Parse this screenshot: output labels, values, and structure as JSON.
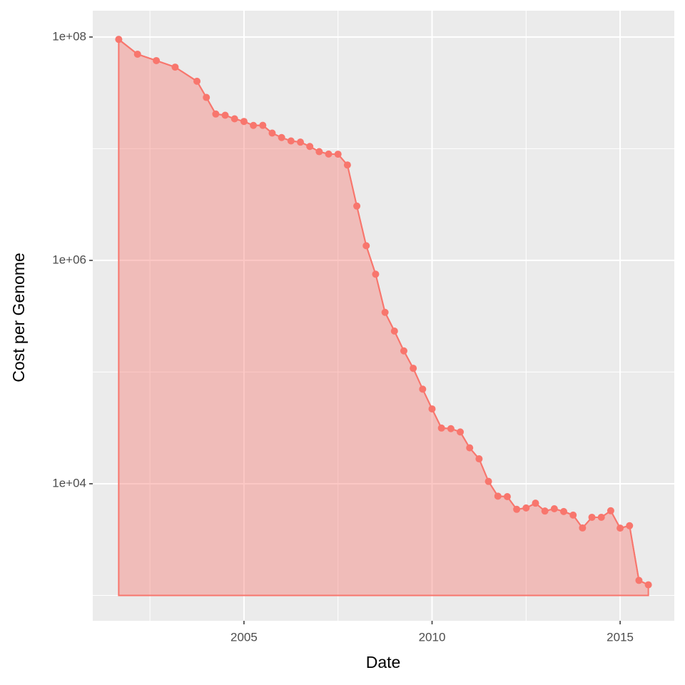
{
  "chart_data": {
    "type": "area",
    "x_label": "Date",
    "y_label": "Cost per Genome",
    "x": [
      2001.67,
      2002.17,
      2002.67,
      2003.17,
      2003.75,
      2004.0,
      2004.25,
      2004.5,
      2004.75,
      2005.0,
      2005.25,
      2005.5,
      2005.75,
      2006.0,
      2006.25,
      2006.5,
      2006.75,
      2007.0,
      2007.25,
      2007.5,
      2007.75,
      2008.0,
      2008.25,
      2008.5,
      2008.75,
      2009.0,
      2009.25,
      2009.5,
      2009.75,
      2010.0,
      2010.25,
      2010.5,
      2010.75,
      2011.0,
      2011.25,
      2011.5,
      2011.75,
      2012.0,
      2012.25,
      2012.5,
      2012.75,
      2013.0,
      2013.25,
      2013.5,
      2013.75,
      2014.0,
      2014.25,
      2014.5,
      2014.75,
      2015.0,
      2015.25,
      2015.5,
      2015.75
    ],
    "values": [
      95263072,
      70175437,
      61448422,
      53751684,
      40153999,
      28780376,
      20442576,
      19934346,
      18519312,
      17534970,
      16159699,
      16180224,
      13801124,
      12585659,
      11732535,
      11455315,
      10474556,
      9408739,
      8956774,
      8928248,
      7147451,
      3063820,
      1352982,
      752080,
      342502,
      232735,
      154714,
      108065,
      70333,
      46774,
      31512,
      31125,
      29092,
      20963,
      16712,
      10497,
      7743,
      7666,
      5901,
      6070,
      6700,
      5700,
      5970,
      5640,
      5240,
      4020,
      5010,
      5010,
      5731,
      4008,
      4209,
      1363,
      1245
    ],
    "color": "#F8766D",
    "fill_opacity": 0.4,
    "background": "#EBEBEB",
    "log_y": true,
    "grid": true,
    "xlim": [
      2000.98,
      2016.44
    ],
    "xticks": [
      2005,
      2010,
      2015
    ],
    "xminor": [
      2002.5,
      2007.5,
      2012.5
    ],
    "ylim": [
      593,
      172000000
    ],
    "yticks": [
      {
        "value": 10000,
        "label": "1e+04"
      },
      {
        "value": 1000000,
        "label": "1e+06"
      },
      {
        "value": 100000000,
        "label": "1e+08"
      }
    ],
    "yminor": [
      1000,
      100000,
      10000000
    ]
  }
}
